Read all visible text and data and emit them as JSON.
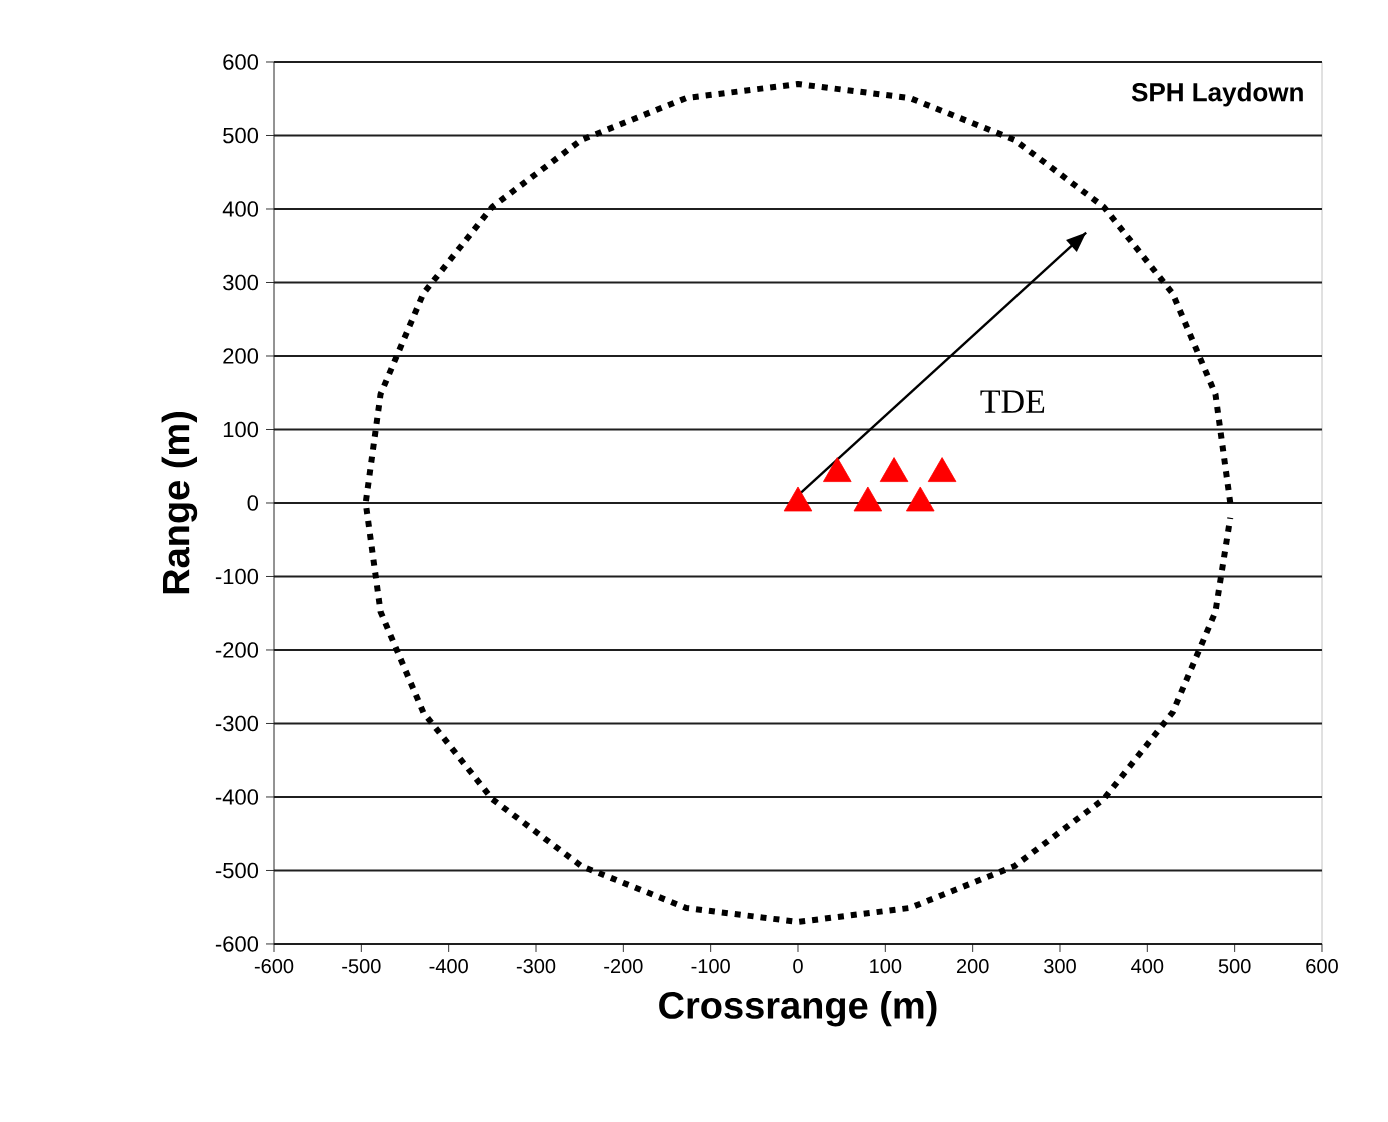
{
  "chart_data": {
    "type": "scatter",
    "title": "SPH Laydown",
    "xlabel": "Crossrange (m)",
    "ylabel": "Range (m)",
    "xlim": [
      -600,
      600
    ],
    "ylim": [
      -600,
      600
    ],
    "xticks": [
      -600,
      -500,
      -400,
      -300,
      -200,
      -100,
      0,
      100,
      200,
      300,
      400,
      500,
      600
    ],
    "yticks": [
      -600,
      -500,
      -400,
      -300,
      -200,
      -100,
      0,
      100,
      200,
      300,
      400,
      500,
      600
    ],
    "grid": "y",
    "series": [
      {
        "color": "#ff0000",
        "marker": "triangle",
        "x": [
          0,
          45,
          80,
          110,
          140,
          165
        ],
        "values": [
          0,
          40,
          0,
          40,
          0,
          40
        ]
      },
      {
        "type": "line",
        "color": "#000000",
        "marker": "none",
        "line_style": "dotted",
        "x": [
          495,
          478,
          429,
          350,
          248,
          128,
          0,
          -128,
          -248,
          -350,
          -429,
          -478,
          -495,
          -478,
          -429,
          -350,
          -248,
          -128,
          0,
          128,
          248,
          350,
          429,
          478,
          495
        ],
        "values": [
          0,
          148,
          285,
          403,
          494,
          551,
          570,
          551,
          494,
          403,
          285,
          148,
          0,
          -148,
          -285,
          -403,
          -494,
          -551,
          -570,
          -551,
          -494,
          -403,
          -285,
          -148,
          -20
        ]
      },
      {
        "type": "line",
        "color": "#000000",
        "marker": "none",
        "line_style": "solid",
        "x": [
          -5,
          330
        ],
        "values": [
          5,
          368
        ]
      }
    ],
    "annotations": [
      "TDE"
    ]
  }
}
